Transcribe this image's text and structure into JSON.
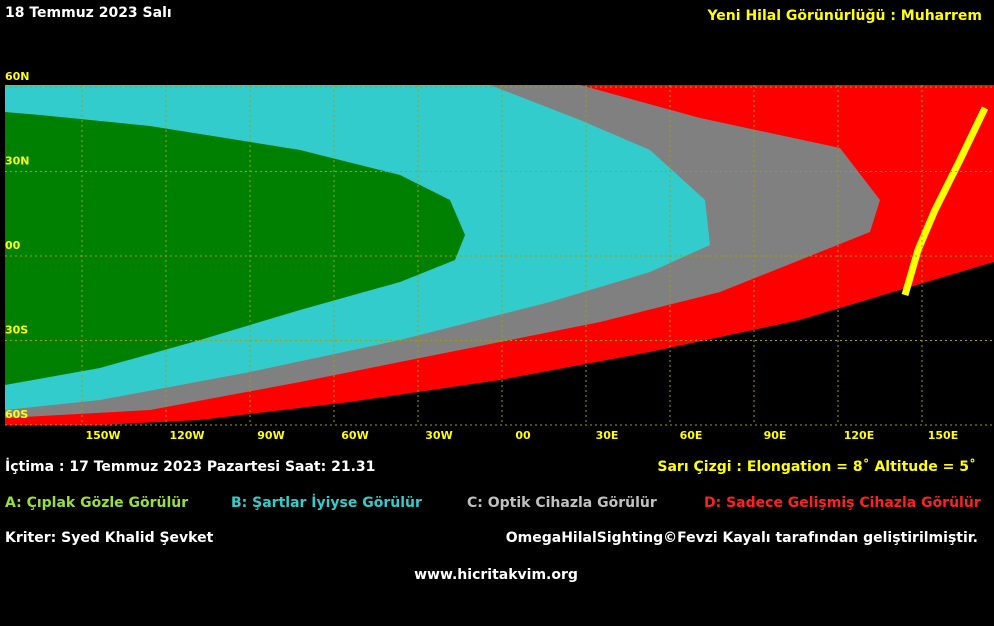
{
  "header": {
    "date": "18 Temmuz 2023 Salı",
    "title": "Yeni Hilal Görünürlüğü : Muharrem"
  },
  "map": {
    "lat_labels": [
      "60N",
      "30N",
      "00",
      "30S",
      "60S"
    ],
    "lon_labels": [
      "150W",
      "120W",
      "90W",
      "60W",
      "30W",
      "00",
      "30E",
      "60E",
      "90E",
      "120E",
      "150E"
    ]
  },
  "info": {
    "conjunction": "İçtima : 17 Temmuz 2023 Pazartesi Saat: 21.31",
    "yellow_line": "Sarı Çizgi : Elongation = 8˚ Altitude = 5˚"
  },
  "legend": [
    {
      "label": "A: Çıplak Gözle Görülür",
      "color": "#99e033"
    },
    {
      "label": "B: Şartlar İyiyse Görülür",
      "color": "#33cccc"
    },
    {
      "label": "C: Optik Cihazla Görülür",
      "color": "#c0c0c0"
    },
    {
      "label": "D: Sadece Gelişmiş Cihazla Görülür",
      "color": "#ff2020"
    }
  ],
  "footer": {
    "criterion": "Kriter: Syed Khalid Şevket",
    "credit": "OmegaHilalSighting©Fevzi Kayalı tarafından geliştirilmiştir.",
    "website": "www.hicritakvim.org"
  }
}
